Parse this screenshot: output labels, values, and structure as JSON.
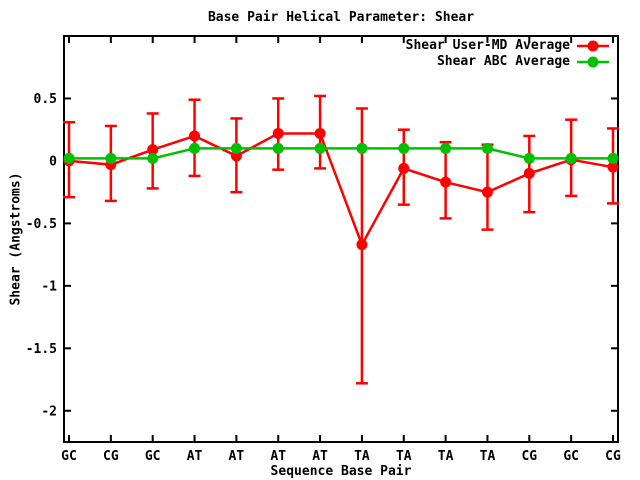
{
  "chart_data": {
    "type": "line",
    "title": "Base Pair Helical Parameter: Shear",
    "xlabel": "Sequence Base Pair",
    "ylabel": "Shear (Angstroms)",
    "categories": [
      "GC",
      "CG",
      "GC",
      "AT",
      "AT",
      "AT",
      "AT",
      "TA",
      "TA",
      "TA",
      "TA",
      "CG",
      "GC",
      "CG"
    ],
    "ytick_values": [
      0.5,
      0,
      -0.5,
      -1,
      -1.5,
      -2
    ],
    "ytick_labels": [
      "0.5",
      "0",
      "-0.5",
      "-1",
      "-1.5",
      "-2"
    ],
    "ylim": [
      -2.25,
      1.0
    ],
    "grid": false,
    "legend_position": "top-right-inside",
    "background_color": "#ffffff",
    "border_color": "#000000",
    "series": [
      {
        "name": "Shear User-MD Average",
        "color": "#ff0000",
        "marker": "filled-circle",
        "has_error_bars": true,
        "values": [
          0.0,
          -0.03,
          0.09,
          0.2,
          0.04,
          0.22,
          0.22,
          -0.67,
          -0.06,
          -0.17,
          -0.25,
          -0.1,
          0.01,
          -0.05
        ],
        "error_high": [
          0.31,
          0.28,
          0.38,
          0.49,
          0.34,
          0.5,
          0.52,
          0.42,
          0.25,
          0.15,
          0.13,
          0.2,
          0.33,
          0.26
        ],
        "error_low": [
          -0.29,
          -0.32,
          -0.22,
          -0.12,
          -0.25,
          -0.07,
          -0.06,
          -1.78,
          -0.35,
          -0.46,
          -0.55,
          -0.41,
          -0.28,
          -0.34
        ]
      },
      {
        "name": "Shear ABC Average",
        "color": "#00c000",
        "marker": "filled-circle",
        "has_error_bars": false,
        "values": [
          0.02,
          0.02,
          0.02,
          0.1,
          0.1,
          0.1,
          0.1,
          0.1,
          0.1,
          0.1,
          0.1,
          0.02,
          0.02,
          0.02
        ]
      }
    ]
  }
}
